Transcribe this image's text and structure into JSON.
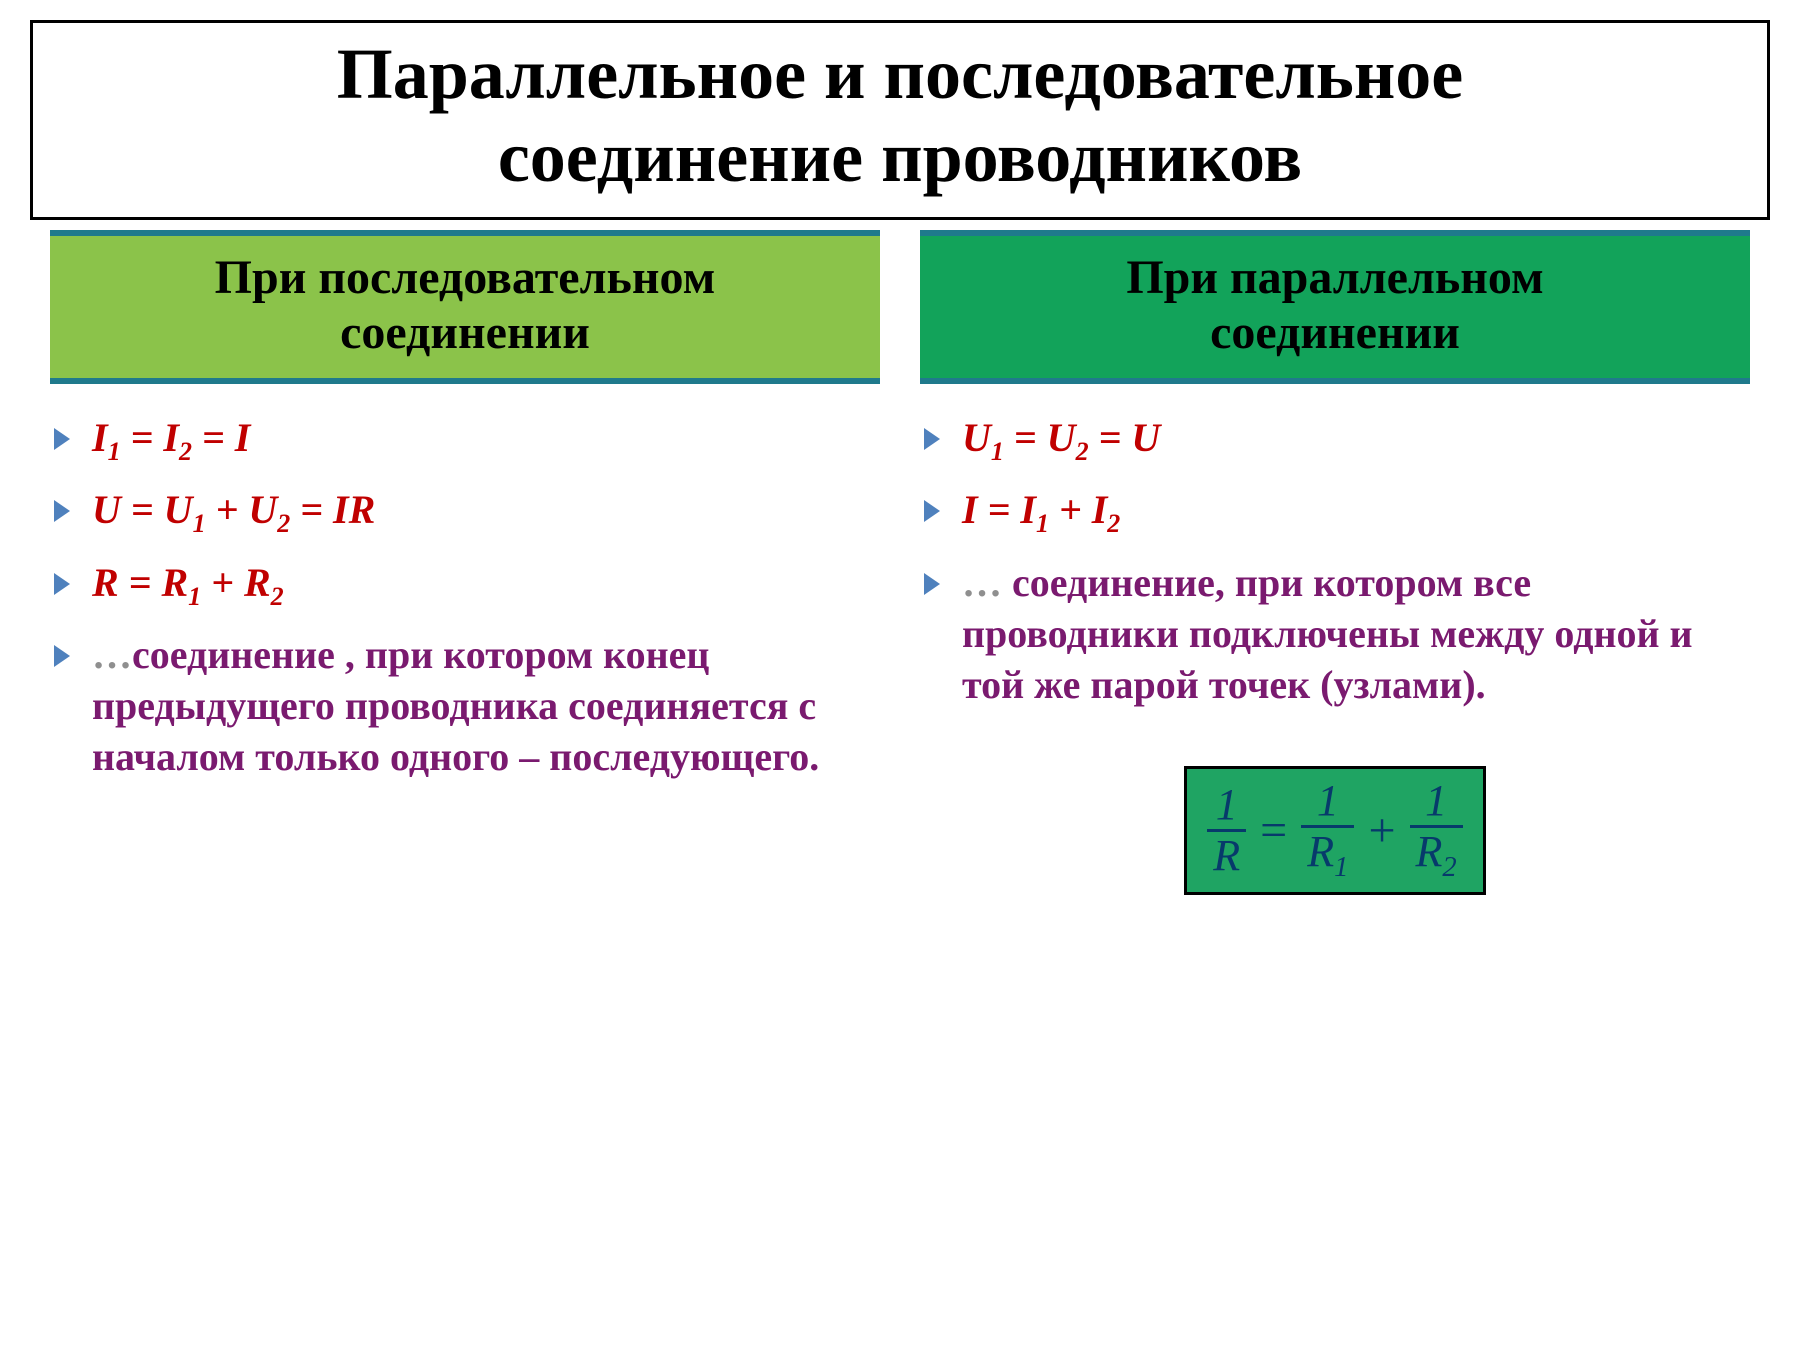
{
  "title_line1": "Параллельное и последовательное",
  "title_line2": "соединение проводников",
  "colors": {
    "bullet": "#4f81bd",
    "formula_red": "#c00000",
    "desc_purple": "#7a1a6f",
    "left_header_bg": "#8bc34a",
    "left_header_border": "#1f7a8c",
    "left_header_text": "#000000",
    "right_header_bg": "#12a35a",
    "right_header_border": "#1f7a8c",
    "right_header_text": "#000000",
    "formula_box_bg": "#1fa463",
    "formula_box_text": "#073a6b"
  },
  "left": {
    "header_l1": "При последовательном",
    "header_l2": "соединении",
    "items": [
      {
        "kind": "formula",
        "html": "I<span class=\"sub\">1</span> = I<span class=\"sub\">2</span> = I"
      },
      {
        "kind": "formula",
        "html": "U = U<span class=\"sub\">1</span> + U<span class=\"sub\">2</span> = IR"
      },
      {
        "kind": "formula",
        "html": "R = R<span class=\"sub\">1</span> + R<span class=\"sub\">2</span>"
      },
      {
        "kind": "desc",
        "ellipsis": "…",
        "text": "соединение , при котором конец предыдущего проводника соединяется с началом только одного – последующего."
      }
    ]
  },
  "right": {
    "header_l1": "При параллельном",
    "header_l2": "соединении",
    "items": [
      {
        "kind": "formula",
        "html": "U<span class=\"sub\">1</span> = U<span class=\"sub\">2</span> = U"
      },
      {
        "kind": "formula",
        "html": "I = I<span class=\"sub\">1</span> + I<span class=\"sub\">2</span>"
      },
      {
        "kind": "desc",
        "ellipsis": "… ",
        "text": "соединение, при котором  все проводники подключены между одной и той же парой точек (узлами)."
      }
    ],
    "formula_box": {
      "fractions": [
        {
          "num": "1",
          "den": "R"
        },
        {
          "num": "1",
          "den": "R<span class=\"sub\">1</span>"
        },
        {
          "num": "1",
          "den": "R<span class=\"sub\">2</span>"
        }
      ],
      "eq": "=",
      "plus": "+"
    }
  }
}
